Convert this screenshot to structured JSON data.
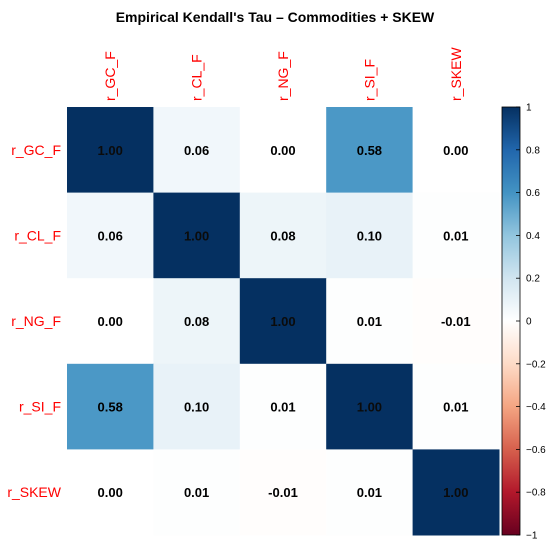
{
  "chart_data": {
    "type": "heatmap",
    "title": "Empirical Kendall's Tau – Commodities + SKEW",
    "row_labels": [
      "r_GC_F",
      "r_CL_F",
      "r_NG_F",
      "r_SI_F",
      "r_SKEW"
    ],
    "col_labels": [
      "r_GC_F",
      "r_CL_F",
      "r_NG_F",
      "r_SI_F",
      "r_SKEW"
    ],
    "values": [
      [
        1.0,
        0.06,
        0.0,
        0.58,
        0.0
      ],
      [
        0.06,
        1.0,
        0.08,
        0.1,
        0.01
      ],
      [
        0.0,
        0.08,
        1.0,
        0.01,
        -0.01
      ],
      [
        0.58,
        0.1,
        0.01,
        1.0,
        0.01
      ],
      [
        0.0,
        0.01,
        -0.01,
        0.01,
        1.0
      ]
    ],
    "value_labels": [
      [
        "1.00",
        "0.06",
        "0.00",
        "0.58",
        "0.00"
      ],
      [
        "0.06",
        "1.00",
        "0.08",
        "0.10",
        "0.01"
      ],
      [
        "0.00",
        "0.08",
        "1.00",
        "0.01",
        "-0.01"
      ],
      [
        "0.58",
        "0.10",
        "0.01",
        "1.00",
        "0.01"
      ],
      [
        "0.00",
        "0.01",
        "-0.01",
        "0.01",
        "1.00"
      ]
    ],
    "color_range": [
      -1,
      1
    ],
    "colorbar_ticks": [
      1,
      0.8,
      0.6,
      0.4,
      0.2,
      0,
      -0.2,
      -0.4,
      -0.6,
      -0.8,
      -1
    ],
    "colorbar_tick_labels": [
      "1",
      "0.8",
      "0.6",
      "0.4",
      "0.2",
      "0",
      "−0.2",
      "−0.4",
      "−0.6",
      "−0.8",
      "−1"
    ],
    "colorscale": [
      "#67001F",
      "#B2182B",
      "#D6604D",
      "#F4A582",
      "#FDDBC7",
      "#FFFFFF",
      "#D1E5F0",
      "#92C5DE",
      "#4393C3",
      "#2166AC",
      "#053061"
    ],
    "label_color": "#FF0000",
    "legend_position": "right"
  }
}
